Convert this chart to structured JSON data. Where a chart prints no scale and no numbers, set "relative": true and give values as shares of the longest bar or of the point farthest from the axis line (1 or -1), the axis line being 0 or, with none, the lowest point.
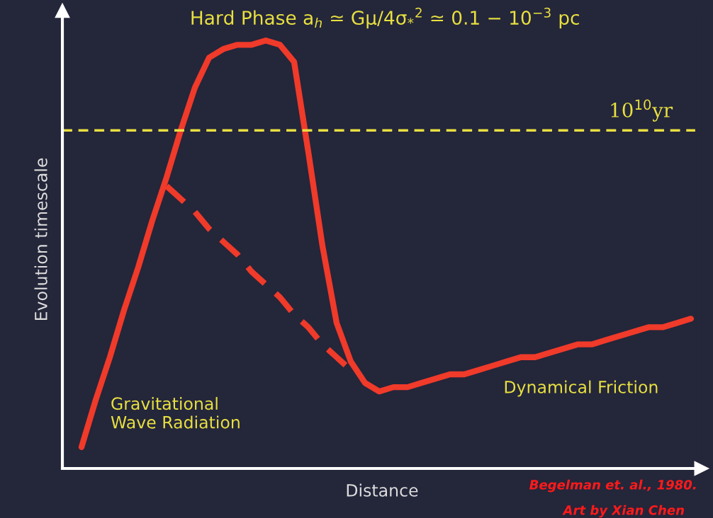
{
  "chart_data": {
    "type": "line",
    "relative": true,
    "title": "Hard Phase a$_{h}$ ≃ Gμ/4σ$_{*}$$^{2}$ ≃ 0.1 − 10$^{−3}$ pc",
    "xlabel": "Distance",
    "ylabel": "Evolution timescale",
    "categories": [
      null,
      null,
      null,
      null,
      null,
      null,
      null,
      null,
      null,
      null,
      null,
      null,
      null,
      null,
      null,
      null,
      null,
      null,
      null,
      null,
      null,
      null,
      null,
      null,
      null,
      null,
      null,
      null,
      null,
      null,
      null,
      null,
      null,
      null,
      null,
      null,
      null,
      null,
      null,
      null,
      null,
      null,
      null,
      null
    ],
    "series": [
      {
        "color": "#f03a2a",
        "line_style": "solid",
        "values": [
          0.05,
          0.16,
          0.26,
          0.37,
          0.47,
          0.58,
          0.68,
          0.79,
          0.89,
          0.96,
          0.98,
          0.99,
          0.99,
          1.0,
          0.99,
          0.95,
          0.74,
          0.52,
          0.34,
          0.25,
          0.2,
          0.18,
          0.19,
          0.19,
          0.2,
          0.21,
          0.22,
          0.22,
          0.23,
          0.24,
          0.25,
          0.26,
          0.26,
          0.27,
          0.28,
          0.29,
          0.29,
          0.3,
          0.31,
          0.32,
          0.33,
          0.33,
          0.34,
          0.35
        ]
      },
      {
        "color": "#f03a2a",
        "line_style": "dashed",
        "values": [
          null,
          null,
          null,
          null,
          null,
          null,
          0.66,
          0.63,
          0.6,
          0.56,
          0.53,
          0.5,
          0.46,
          0.43,
          0.4,
          0.36,
          0.33,
          0.29,
          0.26,
          0.23,
          null,
          null,
          null,
          null,
          null,
          null,
          null,
          null,
          null,
          null,
          null,
          null,
          null,
          null,
          null,
          null,
          null,
          null,
          null,
          null,
          null,
          null,
          null,
          null
        ]
      }
    ],
    "ref_lines": [
      {
        "axis": "y",
        "value": 0.79,
        "label": "10$^{10}$yr",
        "color": "#e8e040",
        "line_style": "dashed"
      }
    ],
    "annotations": [
      "Gravitational\nWave Radiation",
      "Dynamical Friction",
      "Begelman et. al., 1980.",
      "Art by Xian Chen"
    ]
  }
}
